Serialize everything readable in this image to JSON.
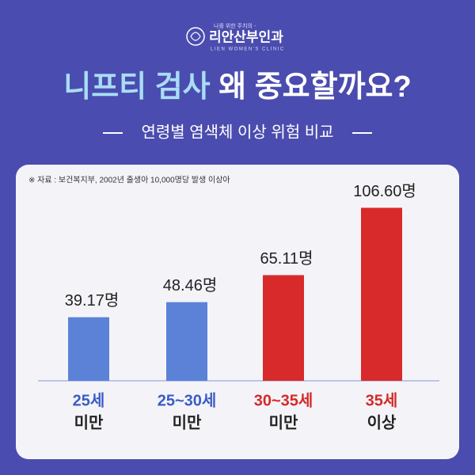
{
  "logo": {
    "tagline": "나를 위한 주치의 -",
    "name": "리안산부인과",
    "english": "LIEN WOMEN'S CLINIC"
  },
  "chart_data": {
    "type": "bar",
    "title_highlight": "니프티 검사",
    "title_rest": "왜 중요할까요?",
    "subtitle": "연령별 염색체 이상 위험 비교",
    "source": "※ 자료 : 보건복지부, 2002년 출생아 10,000명당 발생 이상아",
    "categories": [
      [
        "25세",
        "미만"
      ],
      [
        "25~30세",
        "미만"
      ],
      [
        "30~35세",
        "미만"
      ],
      [
        "35세",
        "이상"
      ]
    ],
    "values": [
      39.17,
      48.46,
      65.11,
      106.6
    ],
    "value_labels": [
      "39.17명",
      "48.46명",
      "65.11명",
      "106.60명"
    ],
    "colors": [
      "#5c82d8",
      "#5c82d8",
      "#d82a2a",
      "#d82a2a"
    ],
    "category_colors": [
      "#3a5cc8",
      "#3a5cc8",
      "#d42a2a",
      "#d42a2a"
    ]
  }
}
